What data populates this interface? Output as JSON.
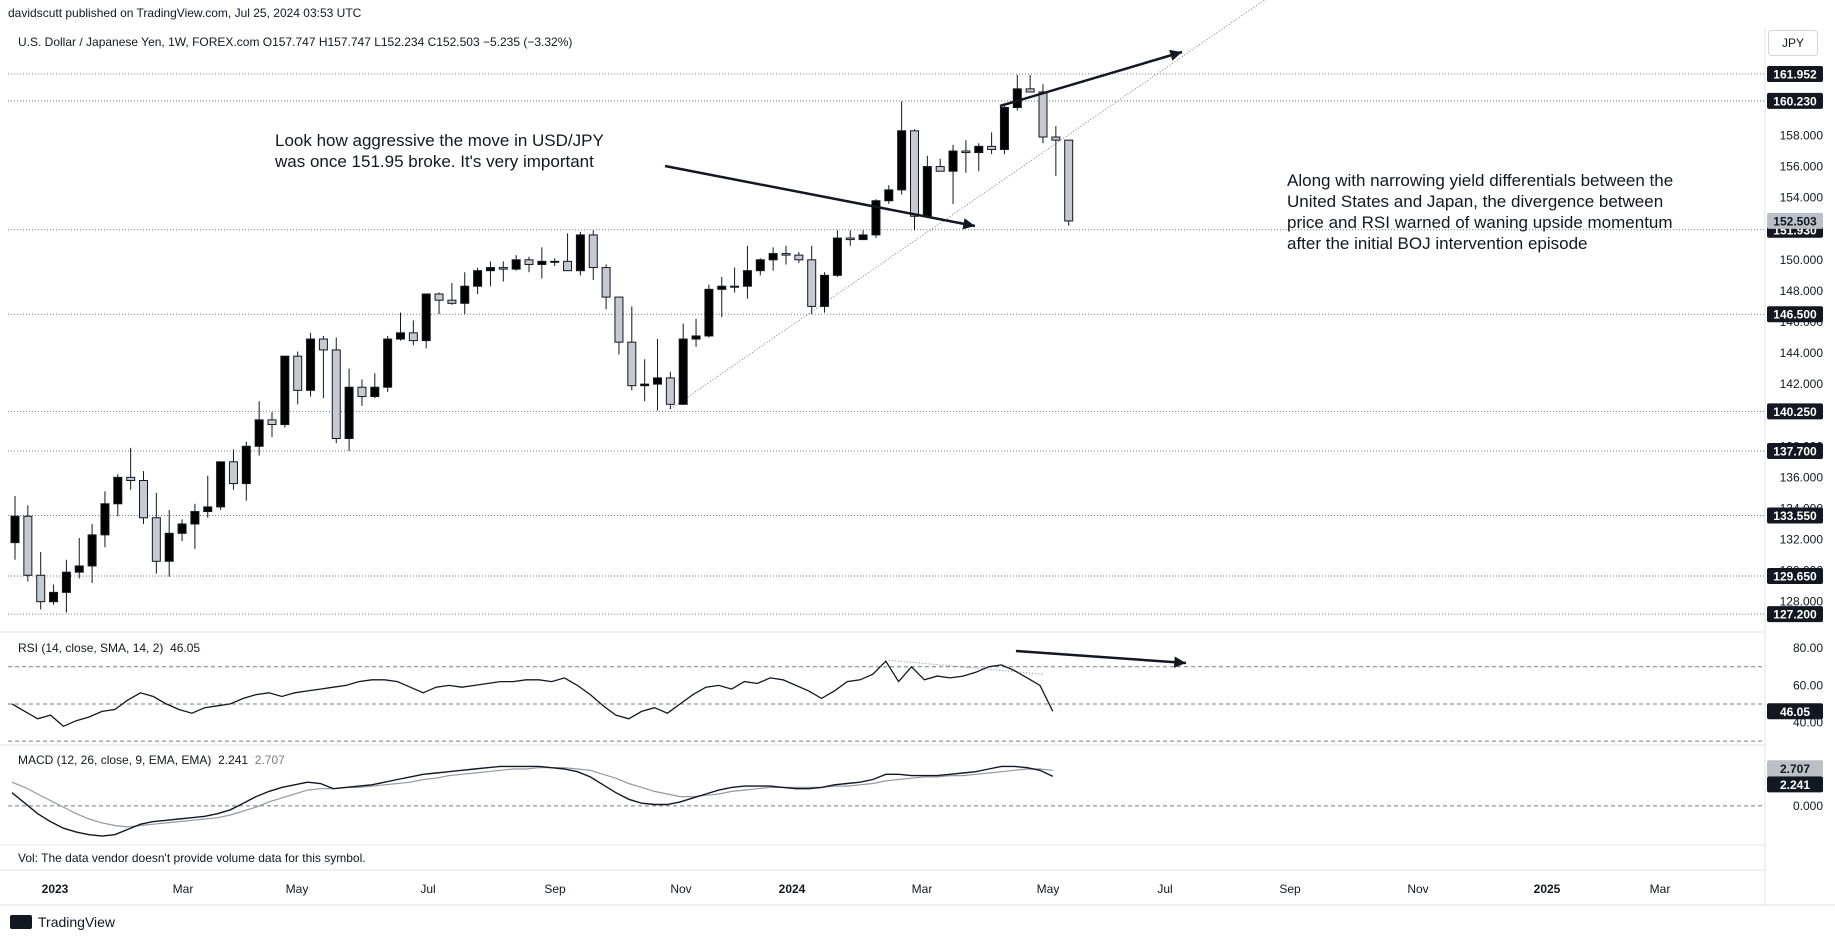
{
  "header": {
    "publisher": "davidscutt published on TradingView.com, Jul 25, 2024 03:53 UTC",
    "symbol_line": "U.S. Dollar / Japanese Yen, 1W, FOREX.com  O157.747  H157.747  L152.234  C152.503  −5.235 (−3.32%)",
    "currency_button": "JPY"
  },
  "annotations": {
    "left_note_line1": "Look how aggressive the move in USD/JPY",
    "left_note_line2": "was once 151.95 broke. It's very important",
    "right_note_line1": "Along with narrowing yield differentials between the",
    "right_note_line2": "United States and Japan, the divergence between",
    "right_note_line3": "price and RSI warned of waning upside momentum",
    "right_note_line4": "after the initial BOJ intervention episode"
  },
  "rsi": {
    "label": "RSI (14, close, SMA, 14, 2)",
    "value": "46.05"
  },
  "macd": {
    "label": "MACD (12, 26, close, 9, EMA, EMA)",
    "value1": "2.241",
    "value2": "2.707"
  },
  "volume_note": "Vol: The data vendor doesn't provide volume data for this symbol.",
  "brand": "TradingView",
  "colors": {
    "up": "#000000",
    "down": "#c7c9d0",
    "line": "#131722",
    "grid_dotted": "#787b86",
    "badge_dark": "#131722",
    "badge_gray": "#bdbfc7"
  },
  "chart_data": [
    {
      "type": "candlestick",
      "title": "U.S. Dollar / Japanese Yen, 1W, FOREX.com",
      "x_ticks": [
        "2023",
        "Mar",
        "May",
        "Jul",
        "Sep",
        "Nov",
        "2024",
        "Mar",
        "May",
        "Jul",
        "Sep",
        "Nov",
        "2025",
        "Mar"
      ],
      "y_ticks": [
        128.0,
        130.0,
        132.0,
        134.0,
        136.0,
        138.0,
        140.0,
        142.0,
        144.0,
        146.0,
        148.0,
        150.0,
        152.0,
        154.0,
        156.0,
        158.0
      ],
      "ylim": [
        126.5,
        163.5
      ],
      "levels": [
        161.952,
        160.23,
        151.93,
        146.5,
        140.25,
        137.7,
        133.55,
        129.65,
        127.2
      ],
      "last_price": 152.503,
      "ohlc": [
        [
          131.8,
          134.8,
          130.7,
          133.5
        ],
        [
          133.5,
          134.2,
          129.3,
          129.7
        ],
        [
          129.7,
          131.2,
          127.5,
          128.0
        ],
        [
          128.0,
          129.1,
          127.8,
          128.6
        ],
        [
          128.6,
          130.7,
          127.3,
          129.9
        ],
        [
          129.9,
          132.1,
          129.5,
          130.3
        ],
        [
          130.3,
          133.0,
          129.2,
          132.3
        ],
        [
          132.3,
          135.1,
          131.5,
          134.3
        ],
        [
          134.3,
          136.2,
          133.5,
          136.0
        ],
        [
          136.0,
          137.9,
          135.2,
          135.8
        ],
        [
          135.8,
          136.4,
          133.0,
          133.4
        ],
        [
          133.4,
          135.0,
          129.8,
          130.6
        ],
        [
          130.6,
          133.9,
          129.6,
          132.4
        ],
        [
          132.4,
          133.3,
          131.9,
          133.0
        ],
        [
          133.0,
          134.3,
          131.4,
          133.8
        ],
        [
          133.8,
          136.1,
          133.4,
          134.1
        ],
        [
          134.1,
          137.0,
          133.9,
          137.0
        ],
        [
          137.0,
          137.8,
          135.2,
          135.6
        ],
        [
          135.6,
          138.3,
          134.5,
          138.0
        ],
        [
          138.0,
          140.9,
          137.4,
          139.7
        ],
        [
          139.7,
          140.2,
          138.6,
          139.4
        ],
        [
          139.4,
          143.8,
          139.2,
          143.8
        ],
        [
          143.8,
          144.1,
          140.7,
          141.6
        ],
        [
          141.6,
          145.3,
          141.2,
          144.9
        ],
        [
          144.9,
          145.1,
          141.1,
          144.2
        ],
        [
          144.2,
          145.0,
          138.2,
          138.5
        ],
        [
          138.5,
          143.0,
          137.7,
          141.8
        ],
        [
          141.8,
          142.3,
          140.6,
          141.2
        ],
        [
          141.2,
          142.7,
          141.1,
          141.8
        ],
        [
          141.8,
          145.1,
          141.5,
          144.9
        ],
        [
          144.9,
          146.6,
          144.8,
          145.3
        ],
        [
          145.3,
          146.1,
          144.5,
          144.8
        ],
        [
          144.8,
          147.8,
          144.3,
          147.8
        ],
        [
          147.8,
          147.9,
          146.5,
          147.4
        ],
        [
          147.4,
          148.5,
          147.1,
          147.2
        ],
        [
          147.2,
          149.2,
          146.5,
          148.3
        ],
        [
          148.3,
          149.5,
          147.8,
          149.3
        ],
        [
          149.3,
          149.9,
          148.3,
          149.5
        ],
        [
          149.5,
          149.9,
          148.6,
          149.4
        ],
        [
          149.4,
          150.3,
          149.3,
          150.0
        ],
        [
          150.0,
          150.2,
          149.2,
          149.7
        ],
        [
          149.7,
          150.8,
          148.8,
          149.9
        ],
        [
          149.9,
          150.1,
          149.6,
          149.9
        ],
        [
          149.9,
          151.7,
          149.6,
          149.3
        ],
        [
          149.3,
          151.8,
          149.0,
          151.6
        ],
        [
          151.6,
          151.9,
          148.7,
          149.5
        ],
        [
          149.5,
          149.7,
          146.8,
          147.6
        ],
        [
          147.6,
          147.6,
          143.9,
          144.7
        ],
        [
          144.7,
          147.0,
          141.6,
          141.9
        ],
        [
          141.9,
          143.6,
          140.9,
          142.0
        ],
        [
          142.0,
          144.9,
          140.3,
          142.4
        ],
        [
          142.4,
          142.8,
          140.4,
          140.7
        ],
        [
          140.7,
          145.9,
          140.7,
          144.9
        ],
        [
          144.9,
          146.2,
          144.4,
          145.1
        ],
        [
          145.1,
          148.4,
          145.0,
          148.1
        ],
        [
          148.1,
          148.9,
          146.3,
          148.3
        ],
        [
          148.3,
          149.5,
          147.9,
          148.3
        ],
        [
          148.3,
          150.9,
          147.5,
          149.3
        ],
        [
          149.3,
          150.1,
          149.0,
          150.0
        ],
        [
          150.0,
          150.8,
          149.3,
          150.4
        ],
        [
          150.4,
          150.9,
          149.7,
          150.3
        ],
        [
          150.3,
          150.5,
          149.8,
          150.0
        ],
        [
          150.0,
          150.9,
          146.5,
          147.0
        ],
        [
          147.0,
          149.2,
          146.6,
          149.0
        ],
        [
          149.0,
          151.9,
          148.9,
          151.4
        ],
        [
          151.4,
          151.9,
          150.9,
          151.3
        ],
        [
          151.3,
          151.9,
          151.3,
          151.6
        ],
        [
          151.6,
          153.9,
          151.4,
          153.8
        ],
        [
          153.8,
          154.8,
          153.6,
          154.5
        ],
        [
          154.5,
          160.2,
          154.2,
          158.3
        ],
        [
          158.3,
          158.4,
          151.9,
          152.8
        ],
        [
          152.8,
          156.7,
          152.8,
          156.0
        ],
        [
          156.0,
          156.5,
          155.8,
          155.7
        ],
        [
          155.7,
          157.4,
          153.6,
          157.0
        ],
        [
          157.0,
          157.7,
          155.6,
          156.9
        ],
        [
          156.9,
          157.5,
          155.7,
          157.3
        ],
        [
          157.3,
          158.2,
          156.8,
          157.1
        ],
        [
          157.1,
          159.9,
          156.8,
          159.8
        ],
        [
          159.8,
          161.9,
          159.6,
          161.0
        ],
        [
          161.0,
          161.9,
          160.8,
          160.8
        ],
        [
          160.8,
          161.3,
          157.5,
          157.9
        ],
        [
          157.9,
          158.6,
          155.4,
          157.7
        ],
        [
          157.7,
          157.7,
          152.2,
          152.5
        ]
      ]
    },
    {
      "type": "line",
      "title": "RSI (14, close, SMA, 14, 2)",
      "y_ticks": [
        40.0,
        60.0,
        80.0
      ],
      "ylim": [
        29,
        86
      ],
      "levels": [
        70,
        50,
        30
      ],
      "last_value": 46.05,
      "values": [
        50,
        46,
        42,
        44,
        38,
        41,
        43,
        46,
        47,
        52,
        56,
        54,
        50,
        47,
        45,
        48,
        49,
        50,
        53,
        55,
        56,
        54,
        56,
        57,
        58,
        59,
        60,
        62,
        63,
        63,
        62,
        59,
        56,
        59,
        60,
        59,
        60,
        61,
        62,
        62,
        63,
        63,
        62,
        64,
        60,
        55,
        49,
        44,
        42,
        46,
        48,
        45,
        50,
        55,
        59,
        60,
        58,
        62,
        61,
        64,
        63,
        60,
        57,
        53,
        57,
        62,
        63,
        66,
        73,
        62,
        70,
        63,
        65,
        64,
        65,
        67,
        70,
        71,
        68,
        64,
        60,
        46.05
      ]
    },
    {
      "type": "line",
      "title": "MACD (12, 26, close, 9, EMA, EMA)",
      "y_ticks": [
        0.0
      ],
      "ylim": [
        -2.6,
        4.4
      ],
      "macd_last": 2.241,
      "signal_last": 2.707,
      "macd": [
        1.0,
        0.2,
        -0.6,
        -1.2,
        -1.7,
        -2.0,
        -2.2,
        -2.3,
        -2.2,
        -1.8,
        -1.4,
        -1.2,
        -1.1,
        -1.0,
        -0.9,
        -0.8,
        -0.6,
        -0.3,
        0.2,
        0.7,
        1.1,
        1.4,
        1.6,
        1.8,
        1.7,
        1.3,
        1.4,
        1.5,
        1.6,
        1.8,
        2.0,
        2.2,
        2.4,
        2.5,
        2.6,
        2.7,
        2.8,
        2.9,
        3.0,
        3.0,
        3.0,
        3.0,
        2.9,
        2.8,
        2.6,
        2.2,
        1.6,
        1.0,
        0.5,
        0.2,
        0.1,
        0.1,
        0.3,
        0.6,
        0.9,
        1.2,
        1.4,
        1.5,
        1.5,
        1.5,
        1.4,
        1.3,
        1.3,
        1.4,
        1.6,
        1.7,
        1.8,
        2.0,
        2.4,
        2.4,
        2.3,
        2.3,
        2.3,
        2.4,
        2.5,
        2.6,
        2.8,
        3.0,
        3.0,
        2.9,
        2.7,
        2.241
      ],
      "signal": [
        1.8,
        1.4,
        0.9,
        0.4,
        -0.1,
        -0.6,
        -1.0,
        -1.3,
        -1.5,
        -1.6,
        -1.5,
        -1.4,
        -1.3,
        -1.2,
        -1.1,
        -1.0,
        -0.9,
        -0.7,
        -0.4,
        -0.1,
        0.3,
        0.6,
        0.9,
        1.2,
        1.3,
        1.3,
        1.4,
        1.4,
        1.5,
        1.6,
        1.7,
        1.8,
        2.0,
        2.1,
        2.3,
        2.4,
        2.5,
        2.6,
        2.7,
        2.8,
        2.8,
        2.9,
        2.9,
        2.9,
        2.8,
        2.7,
        2.4,
        2.1,
        1.7,
        1.4,
        1.1,
        0.9,
        0.7,
        0.7,
        0.8,
        0.9,
        1.1,
        1.2,
        1.3,
        1.4,
        1.4,
        1.4,
        1.4,
        1.4,
        1.5,
        1.5,
        1.6,
        1.7,
        1.9,
        2.0,
        2.1,
        2.2,
        2.2,
        2.3,
        2.3,
        2.4,
        2.5,
        2.6,
        2.7,
        2.8,
        2.8,
        2.707
      ]
    }
  ]
}
